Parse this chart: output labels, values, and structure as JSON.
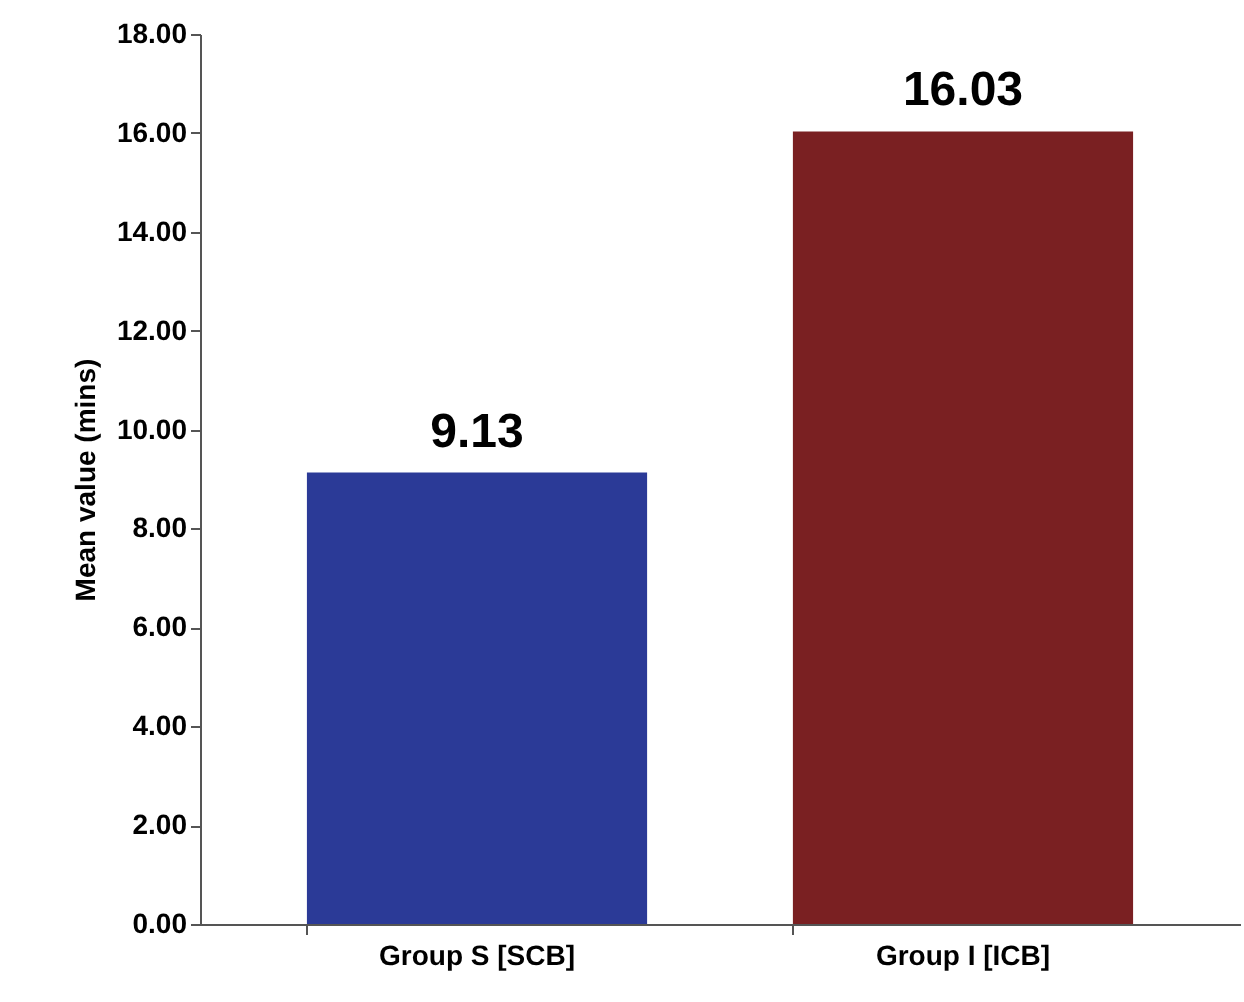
{
  "chart_data": {
    "type": "bar",
    "ylabel": "Mean value (mins)",
    "categories": [
      "Group S [SCB]",
      "Group I [ICB]"
    ],
    "values": [
      9.13,
      16.03
    ],
    "colors": [
      "#2b3a97",
      "#7a2022"
    ],
    "ylim": [
      0,
      18
    ],
    "yticks": [
      {
        "value": 0,
        "label": "0.00"
      },
      {
        "value": 2,
        "label": "2.00"
      },
      {
        "value": 4,
        "label": "4.00"
      },
      {
        "value": 6,
        "label": "6.00"
      },
      {
        "value": 8,
        "label": "8.00"
      },
      {
        "value": 10,
        "label": "10.00"
      },
      {
        "value": 12,
        "label": "12.00"
      },
      {
        "value": 14,
        "label": "14.00"
      },
      {
        "value": 16,
        "label": "16.00"
      },
      {
        "value": 18,
        "label": "18.00"
      }
    ],
    "data_labels": true
  }
}
